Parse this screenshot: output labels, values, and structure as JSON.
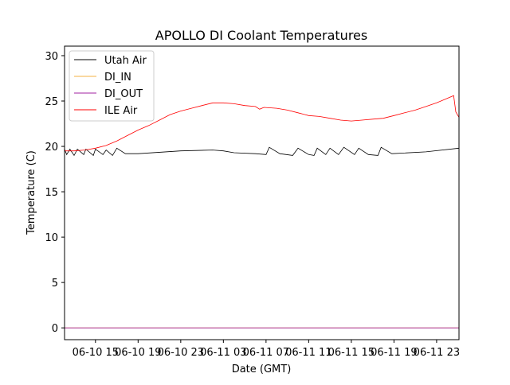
{
  "chart_data": {
    "type": "line",
    "title": "APOLLO DI Coolant Temperatures",
    "xlabel": "Date (GMT)",
    "ylabel": "Temperature (C)",
    "x_unit": "hours since 06-10 00:00 GMT",
    "xlim": [
      12.1,
      49.1
    ],
    "ylim": [
      -1.3,
      31.05
    ],
    "grid": false,
    "legend_position": "top-left",
    "x_ticks": [
      {
        "value": 15,
        "label": "06-10 15"
      },
      {
        "value": 19,
        "label": "06-10 19"
      },
      {
        "value": 23,
        "label": "06-10 23"
      },
      {
        "value": 27,
        "label": "06-11 03"
      },
      {
        "value": 31,
        "label": "06-11 07"
      },
      {
        "value": 35,
        "label": "06-11 11"
      },
      {
        "value": 39,
        "label": "06-11 15"
      },
      {
        "value": 43,
        "label": "06-11 19"
      },
      {
        "value": 47,
        "label": "06-11 23"
      }
    ],
    "y_ticks": [
      {
        "value": 0,
        "label": "0"
      },
      {
        "value": 5,
        "label": "5"
      },
      {
        "value": 10,
        "label": "10"
      },
      {
        "value": 15,
        "label": "15"
      },
      {
        "value": 20,
        "label": "20"
      },
      {
        "value": 25,
        "label": "25"
      },
      {
        "value": 30,
        "label": "30"
      }
    ],
    "series": [
      {
        "name": "Utah Air",
        "color": "#000000",
        "points": [
          [
            12.1,
            19.7
          ],
          [
            12.3,
            19.1
          ],
          [
            12.6,
            19.7
          ],
          [
            13.0,
            19.0
          ],
          [
            13.3,
            19.7
          ],
          [
            13.9,
            19.1
          ],
          [
            14.1,
            19.7
          ],
          [
            14.8,
            19.0
          ],
          [
            15.0,
            19.7
          ],
          [
            15.7,
            19.1
          ],
          [
            16.0,
            19.6
          ],
          [
            16.6,
            19.0
          ],
          [
            17.0,
            19.8
          ],
          [
            17.8,
            19.2
          ],
          [
            19,
            19.2
          ],
          [
            23,
            19.5
          ],
          [
            26,
            19.6
          ],
          [
            27,
            19.5
          ],
          [
            28,
            19.3
          ],
          [
            30,
            19.2
          ],
          [
            31,
            19.1
          ],
          [
            31.3,
            19.9
          ],
          [
            32.3,
            19.2
          ],
          [
            33.5,
            19.0
          ],
          [
            34,
            19.8
          ],
          [
            35,
            19.1
          ],
          [
            35.5,
            19.0
          ],
          [
            35.8,
            19.8
          ],
          [
            36.6,
            19.1
          ],
          [
            37,
            19.8
          ],
          [
            37.8,
            19.1
          ],
          [
            38.3,
            19.9
          ],
          [
            39.3,
            19.1
          ],
          [
            39.7,
            19.8
          ],
          [
            40.6,
            19.1
          ],
          [
            41.5,
            19.0
          ],
          [
            41.8,
            19.9
          ],
          [
            42.8,
            19.2
          ],
          [
            46,
            19.4
          ],
          [
            49.1,
            19.8
          ]
        ]
      },
      {
        "name": "DI_IN",
        "color": "#f5b041",
        "points": [
          [
            12.1,
            0
          ],
          [
            49.1,
            0
          ]
        ]
      },
      {
        "name": "DI_OUT",
        "color": "#a020a0",
        "points": [
          [
            12.1,
            0
          ],
          [
            49.1,
            0
          ]
        ]
      },
      {
        "name": "ILE Air",
        "color": "#ff0000",
        "points": [
          [
            12.1,
            19.5
          ],
          [
            13,
            19.5
          ],
          [
            14,
            19.6
          ],
          [
            15,
            19.8
          ],
          [
            16,
            20.1
          ],
          [
            17,
            20.6
          ],
          [
            18,
            21.2
          ],
          [
            19,
            21.8
          ],
          [
            20,
            22.3
          ],
          [
            21,
            22.9
          ],
          [
            22,
            23.5
          ],
          [
            23,
            23.9
          ],
          [
            24,
            24.2
          ],
          [
            25,
            24.5
          ],
          [
            26,
            24.8
          ],
          [
            27,
            24.8
          ],
          [
            28,
            24.7
          ],
          [
            29,
            24.5
          ],
          [
            30,
            24.4
          ],
          [
            30.4,
            24.1
          ],
          [
            30.8,
            24.3
          ],
          [
            32,
            24.2
          ],
          [
            33,
            24.0
          ],
          [
            34,
            23.7
          ],
          [
            35,
            23.4
          ],
          [
            36,
            23.3
          ],
          [
            37,
            23.1
          ],
          [
            38,
            22.9
          ],
          [
            39,
            22.8
          ],
          [
            40,
            22.9
          ],
          [
            41,
            23.0
          ],
          [
            42,
            23.1
          ],
          [
            43,
            23.4
          ],
          [
            44,
            23.7
          ],
          [
            45,
            24.0
          ],
          [
            46,
            24.4
          ],
          [
            47,
            24.8
          ],
          [
            48,
            25.3
          ],
          [
            48.6,
            25.6
          ],
          [
            48.8,
            23.8
          ],
          [
            49.1,
            23.2
          ]
        ]
      }
    ]
  }
}
